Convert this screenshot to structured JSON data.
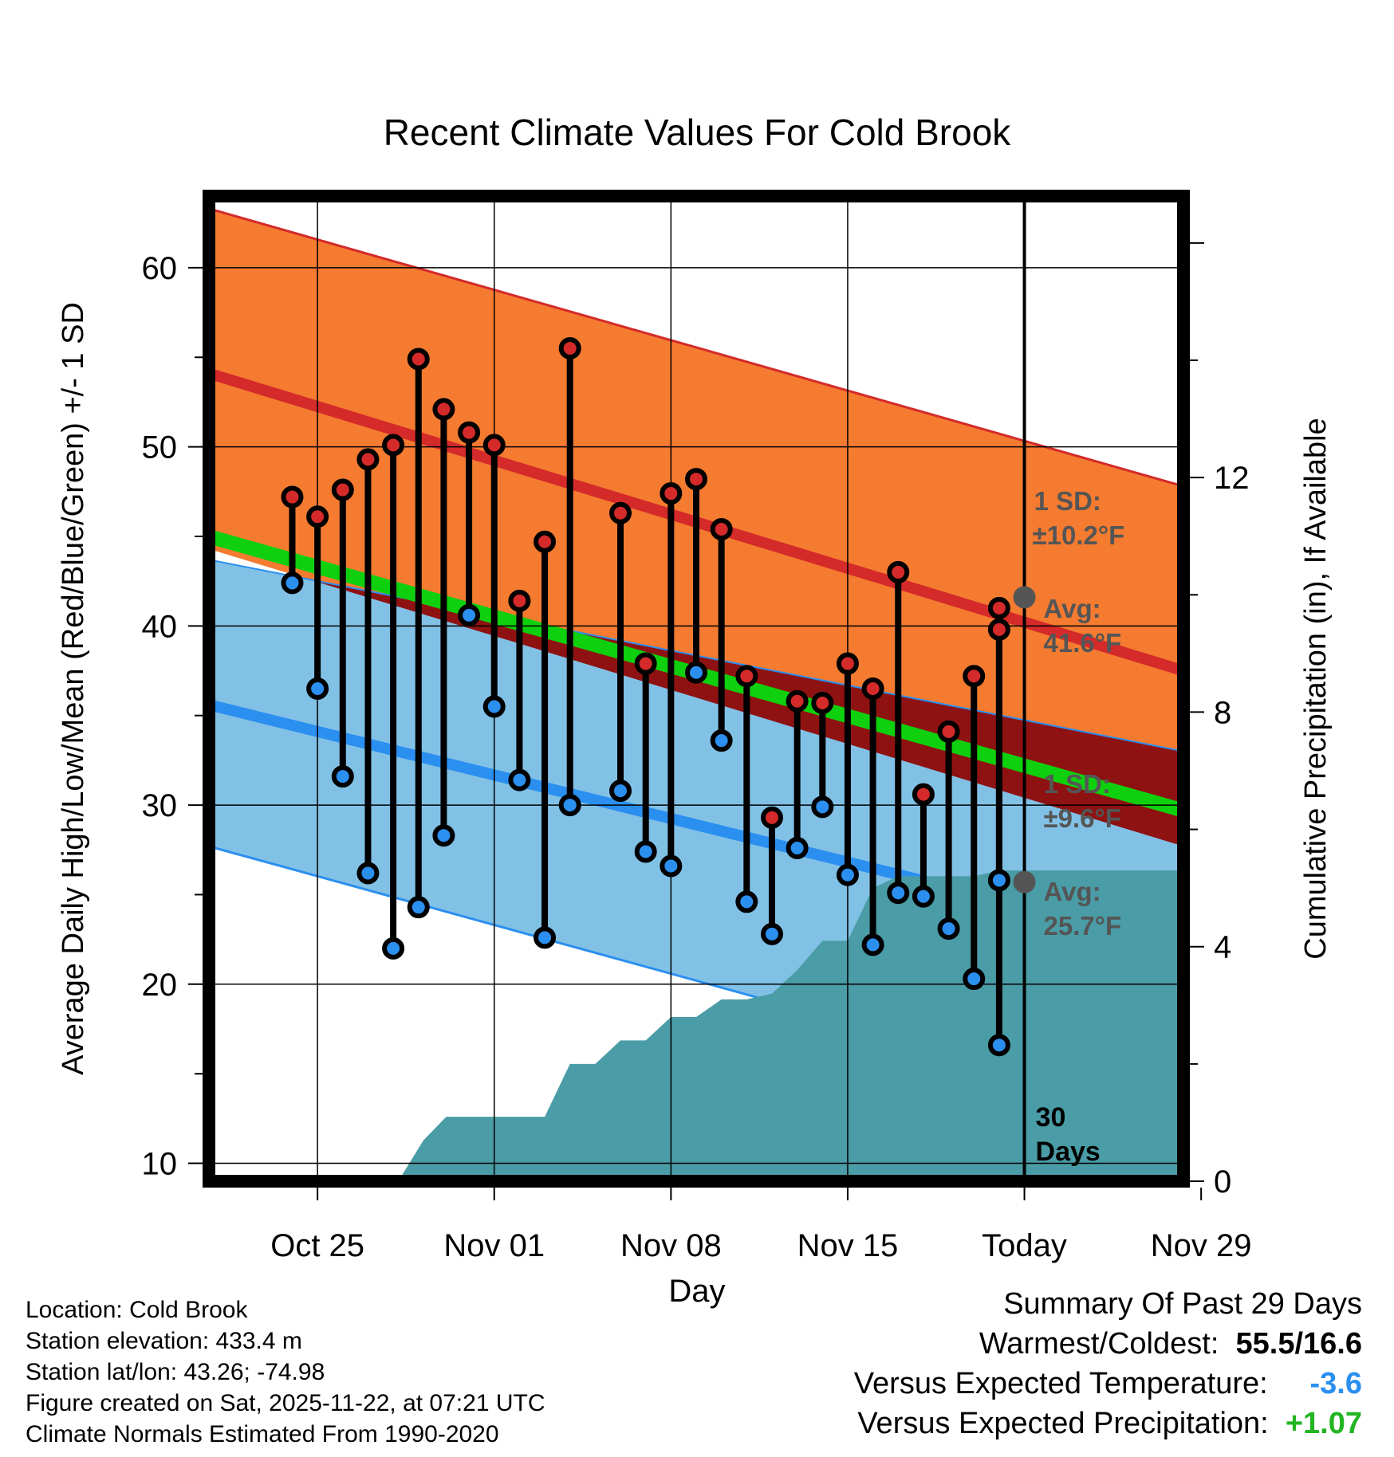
{
  "chart_data": {
    "type": "line",
    "title": "Recent Climate Values For Cold Brook",
    "xlabel": "Day",
    "ylabel": "Average Daily High/Low/Mean (Red/Blue/Green) +/- 1 SD",
    "y2label": "Cumulative Precipitation (in), If Available",
    "ylim": [
      9,
      64
    ],
    "y2lim": [
      0,
      16.8
    ],
    "xlim": [
      -3.3,
      35.3
    ],
    "yticks": [
      10,
      20,
      30,
      40,
      50,
      60
    ],
    "y2ticks": [
      0,
      4,
      8,
      12
    ],
    "xticks": [
      {
        "day": 1,
        "label": "Oct 25"
      },
      {
        "day": 8,
        "label": "Nov 01"
      },
      {
        "day": 15,
        "label": "Nov 08"
      },
      {
        "day": 22,
        "label": "Nov 15"
      },
      {
        "day": 29,
        "label": "Today"
      },
      {
        "day": 36,
        "label": "Nov 29"
      }
    ],
    "x_day_origin": "Oct 24 = 0",
    "today_day": 29,
    "today_label": "30 Days",
    "normals": {
      "high_avg": {
        "start": 54.1,
        "end": 37.5,
        "today": 41.6
      },
      "high_upper": {
        "start": 63.3,
        "end": 47.8
      },
      "high_lower": {
        "start": 44.3,
        "end": 27.7
      },
      "low_avg": {
        "start": 35.6,
        "end": 22.2,
        "today": 25.7
      },
      "low_upper": {
        "start": 43.7,
        "end": 33.0
      },
      "low_lower": {
        "start": 27.7,
        "end": 12.7
      },
      "mean_line": {
        "start": 45.0,
        "end": 29.7
      }
    },
    "annotations": {
      "high_sd": "1 SD:",
      "high_sd_value": "±10.2°F",
      "high_avg_label": "Avg:",
      "high_avg_value": "41.6°F",
      "low_sd": "1 SD:",
      "low_sd_value": "±9.6°F",
      "low_avg_label": "Avg:",
      "low_avg_value": "25.7°F"
    },
    "series": [
      {
        "name": "Daily High",
        "color": "#d42a2a",
        "x": [
          0,
          1,
          2,
          3,
          4,
          5,
          6,
          7,
          8,
          9,
          10,
          11,
          13,
          14,
          15,
          16,
          17,
          18,
          19,
          20,
          21,
          22,
          23,
          24,
          25,
          26,
          27,
          28
        ],
        "values": [
          47.2,
          46.1,
          47.6,
          49.3,
          50.1,
          54.9,
          52.1,
          50.8,
          50.1,
          41.4,
          44.7,
          55.5,
          46.3,
          37.9,
          47.4,
          48.2,
          45.4,
          37.2,
          29.3,
          35.8,
          35.7,
          37.9,
          36.5,
          43.0,
          30.6,
          34.1,
          37.2,
          39.8
        ]
      },
      {
        "name": "Daily Low",
        "color": "#2b8ff0",
        "x": [
          0,
          1,
          2,
          3,
          4,
          5,
          6,
          7,
          8,
          9,
          10,
          11,
          13,
          14,
          15,
          16,
          17,
          18,
          19,
          20,
          21,
          22,
          23,
          24,
          25,
          26,
          27,
          28
        ],
        "values": [
          42.4,
          36.5,
          31.6,
          26.2,
          22.0,
          24.3,
          28.3,
          40.6,
          35.5,
          31.4,
          22.6,
          30.0,
          30.8,
          27.4,
          26.6,
          37.4,
          33.6,
          24.6,
          22.8,
          27.6,
          29.9,
          26.1,
          22.2,
          25.1,
          24.9,
          23.1,
          20.3,
          16.6
        ]
      },
      {
        "name": "Cumulative Precipitation",
        "color": "#4a9ca6",
        "axis": "y2",
        "x": [
          4.2,
          5.2,
          6.1,
          7.0,
          8.0,
          9.0,
          10.0,
          11.0,
          12.0,
          13.0,
          14.0,
          15.0,
          16.0,
          17.0,
          18.0,
          19.0,
          20.0,
          21.0,
          22.0,
          23.0,
          24.0,
          25.0,
          26.0,
          27.0,
          28.0,
          29.0,
          35.0
        ],
        "values": [
          0.0,
          0.7,
          1.1,
          1.1,
          1.1,
          1.1,
          1.1,
          2.0,
          2.0,
          2.4,
          2.4,
          2.8,
          2.8,
          3.1,
          3.1,
          3.2,
          3.6,
          4.1,
          4.1,
          5.0,
          5.2,
          5.2,
          5.2,
          5.2,
          5.3,
          5.3,
          5.3
        ]
      }
    ],
    "extra_points": [
      {
        "x": 28,
        "high": 41.0,
        "low": 25.8
      }
    ],
    "colors": {
      "high_band": "#f47b30",
      "high_line": "#d42a2a",
      "low_band": "#82c1e6",
      "low_line": "#2b8ff0",
      "mean_line": "#0fd00f",
      "overlap": "#8e1212",
      "precip": "#4a9ca6",
      "today_marker": "#555555"
    }
  },
  "footer": {
    "location": "Location: Cold Brook",
    "elevation": "Station elevation: 433.4 m",
    "latlon": "Station lat/lon: 43.26; -74.98",
    "created": "Figure created on Sat, 2025-11-22, at 07:21 UTC",
    "normals": "Climate Normals Estimated From 1990-2020"
  },
  "summary": {
    "title": "Summary Of Past 29 Days",
    "warmest_label": "Warmest/Coldest:",
    "warmest_value": "55.5/16.6",
    "temp_label": "Versus Expected Temperature:",
    "temp_value": "-3.6",
    "temp_color": "#2b8ff0",
    "precip_label": "Versus Expected Precipitation:",
    "precip_value": "+1.07",
    "precip_color": "#22b522"
  }
}
